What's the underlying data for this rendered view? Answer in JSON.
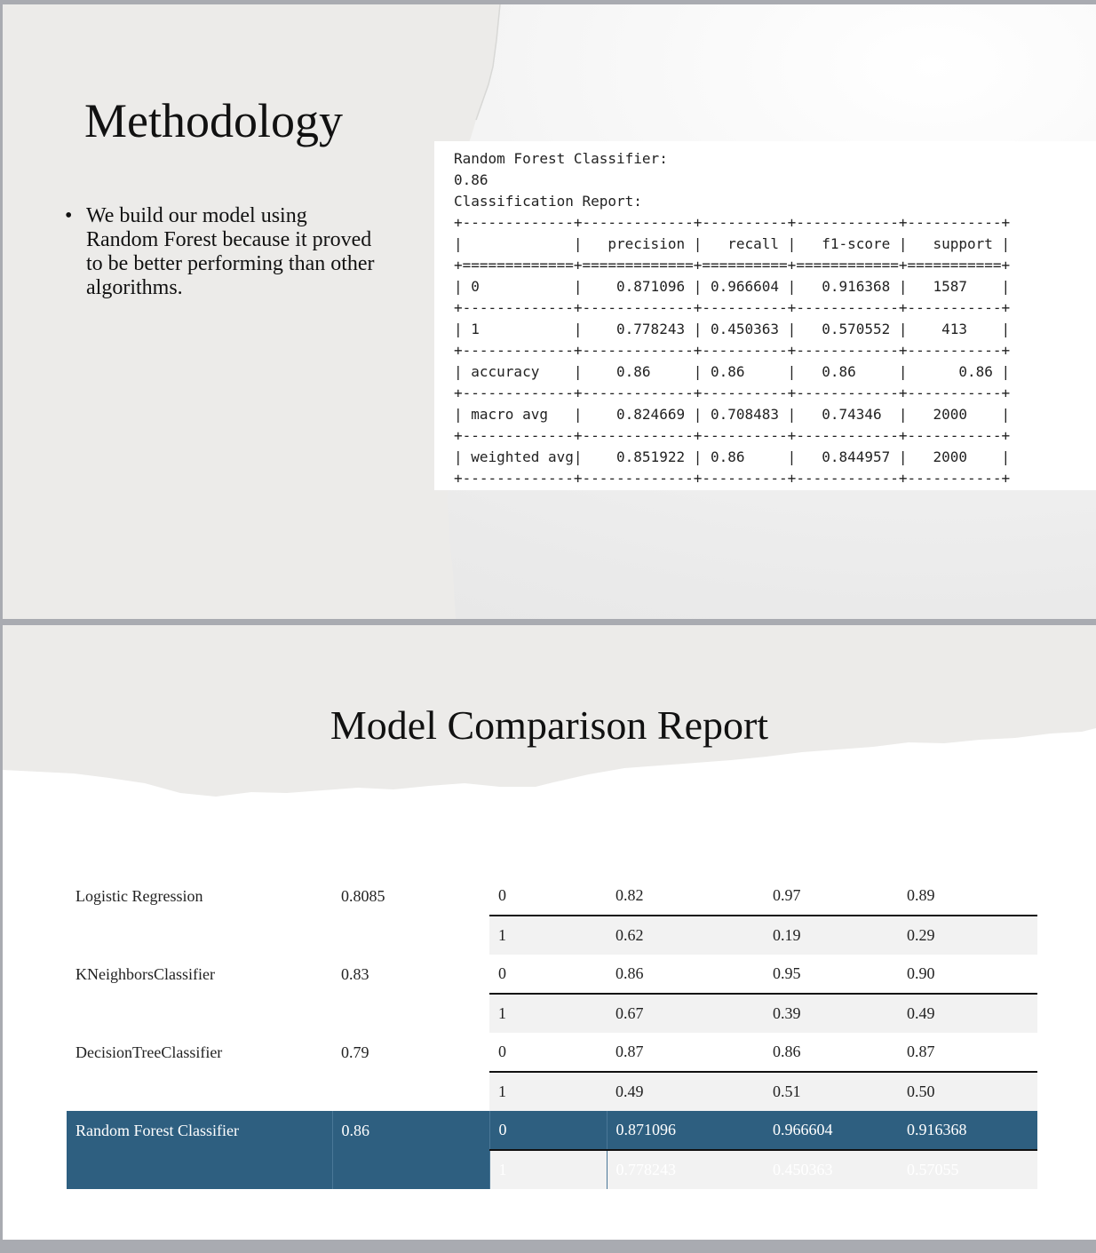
{
  "slide1": {
    "title": "Methodology",
    "bullets": [
      "We build our model using Random Forest because it proved to be better performing than other algorithms."
    ],
    "console_lines": [
      "Random Forest Classifier:",
      "0.86",
      "Classification Report:",
      "+-------------+-------------+----------+------------+-----------+",
      "|             |   precision |   recall |   f1-score |   support |",
      "+=============+=============+==========+============+===========+",
      "| 0           |    0.871096 | 0.966604 |   0.916368 |   1587    |",
      "+-------------+-------------+----------+------------+-----------+",
      "| 1           |    0.778243 | 0.450363 |   0.570552 |    413    |",
      "+-------------+-------------+----------+------------+-----------+",
      "| accuracy    |    0.86     | 0.86     |   0.86     |      0.86 |",
      "+-------------+-------------+----------+------------+-----------+",
      "| macro avg   |    0.824669 | 0.708483 |   0.74346  |   2000    |",
      "+-------------+-------------+----------+------------+-----------+",
      "| weighted avg|    0.851922 | 0.86     |   0.844957 |   2000    |",
      "+-------------+-------------+----------+------------+-----------+"
    ]
  },
  "slide2": {
    "title": "Model Comparison Report",
    "models": [
      {
        "name": "Logistic Regression",
        "accuracy": "0.8085",
        "highlighted": false,
        "rows": [
          {
            "class": "0",
            "precision": "0.82",
            "recall": "0.97",
            "f1": "0.89"
          },
          {
            "class": "1",
            "precision": "0.62",
            "recall": "0.19",
            "f1": "0.29"
          }
        ]
      },
      {
        "name": "KNeighborsClassifier",
        "accuracy": "0.83",
        "highlighted": false,
        "rows": [
          {
            "class": "0",
            "precision": "0.86",
            "recall": "0.95",
            "f1": "0.90"
          },
          {
            "class": "1",
            "precision": "0.67",
            "recall": "0.39",
            "f1": "0.49"
          }
        ]
      },
      {
        "name": "DecisionTreeClassifier",
        "accuracy": "0.79",
        "highlighted": false,
        "rows": [
          {
            "class": "0",
            "precision": "0.87",
            "recall": "0.86",
            "f1": "0.87"
          },
          {
            "class": "1",
            "precision": "0.49",
            "recall": "0.51",
            "f1": "0.50"
          }
        ]
      },
      {
        "name": "Random Forest Classifier",
        "accuracy": "0.86",
        "highlighted": true,
        "rows": [
          {
            "class": "0",
            "precision": "0.871096",
            "recall": "0.966604",
            "f1": "0.916368"
          },
          {
            "class": "1",
            "precision": "0.778243",
            "recall": "0.450363",
            "f1": "0.57055"
          }
        ]
      }
    ]
  },
  "colors": {
    "highlight": "#2e5f80",
    "page_gap": "#a9abb1",
    "paper_gray": "#ecebe9"
  }
}
